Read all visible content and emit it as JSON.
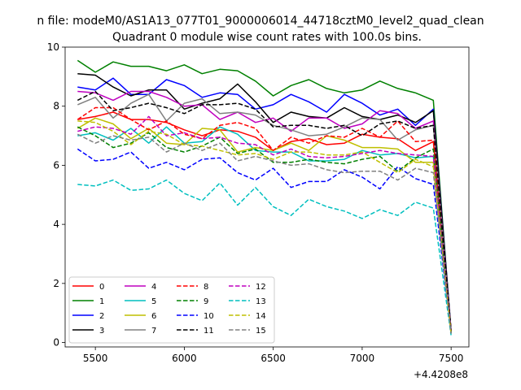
{
  "figure": {
    "suptitle": "n file: modeM0/AS1A13_077T01_9000006014_44718cztM0_level2_quad_clean",
    "title": "Quadrant 0 module wise count rates with 100.0s bins.",
    "offset_label": "+4.4208e8"
  },
  "chart_data": {
    "type": "line",
    "title": "Quadrant 0 module wise count rates with 100.0s bins.",
    "xlabel": "",
    "ylabel": "",
    "x_offset": 442080000,
    "xlim": [
      5330,
      7600
    ],
    "ylim": [
      -0.15,
      10
    ],
    "xticks": [
      5500,
      6000,
      6500,
      7000,
      7500
    ],
    "yticks": [
      0,
      2,
      4,
      6,
      8,
      10
    ],
    "grid": false,
    "legend_position": "lower-left",
    "legend_columns": 4,
    "x": [
      5400,
      5500,
      5600,
      5700,
      5800,
      5900,
      6000,
      6100,
      6200,
      6300,
      6400,
      6500,
      6600,
      6700,
      6800,
      6900,
      7000,
      7100,
      7200,
      7300,
      7400,
      7500
    ],
    "series": [
      {
        "name": "0",
        "color": "#ff0000",
        "dash": false,
        "values": [
          7.55,
          7.65,
          7.8,
          7.55,
          7.55,
          7.45,
          7.2,
          7.0,
          7.2,
          7.15,
          6.95,
          6.5,
          6.8,
          6.9,
          6.7,
          6.75,
          7.05,
          6.95,
          6.9,
          6.5,
          6.8,
          0.4
        ]
      },
      {
        "name": "1",
        "color": "#008000",
        "dash": false,
        "values": [
          9.55,
          9.15,
          9.5,
          9.35,
          9.35,
          9.2,
          9.4,
          9.1,
          9.25,
          9.2,
          8.85,
          8.35,
          8.7,
          8.9,
          8.6,
          8.45,
          8.55,
          8.85,
          8.6,
          8.45,
          8.2,
          0.35
        ]
      },
      {
        "name": "2",
        "color": "#0000ff",
        "dash": false,
        "values": [
          8.65,
          8.55,
          8.95,
          8.4,
          8.4,
          8.9,
          8.7,
          8.3,
          8.45,
          8.4,
          7.9,
          8.05,
          8.4,
          8.15,
          7.8,
          8.4,
          8.1,
          7.7,
          7.9,
          7.35,
          7.9,
          0.4
        ]
      },
      {
        "name": "3",
        "color": "#000000",
        "dash": false,
        "values": [
          9.1,
          9.05,
          8.65,
          8.35,
          8.55,
          8.55,
          7.9,
          8.1,
          8.25,
          8.75,
          8.15,
          7.45,
          7.8,
          7.65,
          7.6,
          7.95,
          7.65,
          7.55,
          7.7,
          7.45,
          7.85,
          0.4
        ]
      },
      {
        "name": "4",
        "color": "#bf00bf",
        "dash": false,
        "values": [
          8.5,
          8.45,
          8.2,
          8.5,
          8.5,
          8.3,
          8.0,
          8.05,
          7.55,
          7.8,
          7.45,
          7.6,
          7.15,
          7.6,
          7.6,
          7.25,
          7.4,
          7.85,
          7.75,
          7.25,
          7.5,
          0.35
        ]
      },
      {
        "name": "5",
        "color": "#00bfbf",
        "dash": false,
        "values": [
          7.0,
          7.1,
          6.85,
          7.25,
          6.75,
          7.3,
          6.75,
          6.8,
          7.3,
          7.05,
          6.5,
          6.45,
          6.45,
          6.15,
          6.15,
          6.2,
          6.5,
          6.35,
          6.4,
          6.25,
          6.3,
          0.3
        ]
      },
      {
        "name": "6",
        "color": "#bfbf00",
        "dash": false,
        "values": [
          7.25,
          7.6,
          7.4,
          6.9,
          7.25,
          6.75,
          6.7,
          7.25,
          7.2,
          6.45,
          6.6,
          6.5,
          6.75,
          6.5,
          7.0,
          6.85,
          6.6,
          6.6,
          6.55,
          6.1,
          6.1,
          0.3
        ]
      },
      {
        "name": "7",
        "color": "#808080",
        "dash": false,
        "values": [
          8.05,
          8.3,
          7.6,
          8.1,
          8.4,
          7.5,
          8.1,
          8.25,
          7.75,
          7.8,
          7.7,
          7.35,
          7.2,
          7.0,
          7.05,
          7.3,
          7.6,
          7.55,
          6.85,
          7.2,
          7.35,
          0.3
        ]
      },
      {
        "name": "8",
        "color": "#ff0000",
        "dash": true,
        "values": [
          7.55,
          7.95,
          7.95,
          7.55,
          7.2,
          7.5,
          7.05,
          6.9,
          7.35,
          7.45,
          7.25,
          6.5,
          6.95,
          6.75,
          7.0,
          6.95,
          7.25,
          6.95,
          7.5,
          6.8,
          6.85,
          0.4
        ]
      },
      {
        "name": "9",
        "color": "#008000",
        "dash": true,
        "values": [
          7.3,
          7.0,
          6.6,
          6.75,
          7.1,
          6.6,
          6.45,
          6.65,
          6.95,
          6.4,
          6.55,
          6.1,
          6.1,
          6.2,
          6.1,
          6.05,
          6.2,
          6.3,
          5.8,
          6.25,
          6.55,
          0.35
        ]
      },
      {
        "name": "10",
        "color": "#0000ff",
        "dash": true,
        "values": [
          6.55,
          6.15,
          6.2,
          6.45,
          5.9,
          6.1,
          5.85,
          6.2,
          6.25,
          5.75,
          5.5,
          5.9,
          5.25,
          5.45,
          5.45,
          5.85,
          5.6,
          5.2,
          5.95,
          5.55,
          5.35,
          0.35
        ]
      },
      {
        "name": "11",
        "color": "#000000",
        "dash": true,
        "values": [
          8.2,
          8.5,
          7.85,
          7.95,
          8.1,
          7.95,
          7.75,
          8.05,
          8.05,
          8.1,
          7.9,
          7.3,
          7.35,
          7.35,
          7.25,
          7.35,
          7.0,
          7.4,
          7.5,
          7.25,
          7.35,
          0.4
        ]
      },
      {
        "name": "12",
        "color": "#bf00bf",
        "dash": true,
        "values": [
          7.15,
          7.3,
          7.25,
          7.05,
          7.65,
          7.0,
          7.1,
          6.9,
          6.95,
          6.75,
          6.7,
          6.35,
          6.55,
          6.3,
          6.25,
          6.3,
          6.4,
          6.5,
          6.4,
          6.35,
          6.3,
          0.3
        ]
      },
      {
        "name": "13",
        "color": "#00bfbf",
        "dash": true,
        "values": [
          5.35,
          5.3,
          5.5,
          5.15,
          5.2,
          5.5,
          5.05,
          4.8,
          5.4,
          4.65,
          5.25,
          4.6,
          4.3,
          4.85,
          4.6,
          4.45,
          4.2,
          4.5,
          4.3,
          4.75,
          4.55,
          0.25
        ]
      },
      {
        "name": "14",
        "color": "#bfbf00",
        "dash": true,
        "values": [
          7.5,
          7.45,
          7.15,
          6.7,
          7.15,
          7.05,
          6.7,
          6.65,
          6.5,
          6.35,
          6.4,
          6.2,
          6.45,
          6.45,
          6.35,
          6.35,
          6.45,
          6.1,
          5.75,
          6.2,
          5.95,
          0.3
        ]
      },
      {
        "name": "15",
        "color": "#808080",
        "dash": true,
        "values": [
          7.05,
          6.75,
          7.0,
          6.85,
          6.95,
          6.45,
          6.75,
          6.5,
          6.75,
          6.15,
          6.3,
          6.15,
          6.0,
          6.05,
          5.85,
          5.75,
          5.8,
          5.8,
          5.5,
          5.9,
          5.75,
          0.3
        ]
      }
    ]
  }
}
